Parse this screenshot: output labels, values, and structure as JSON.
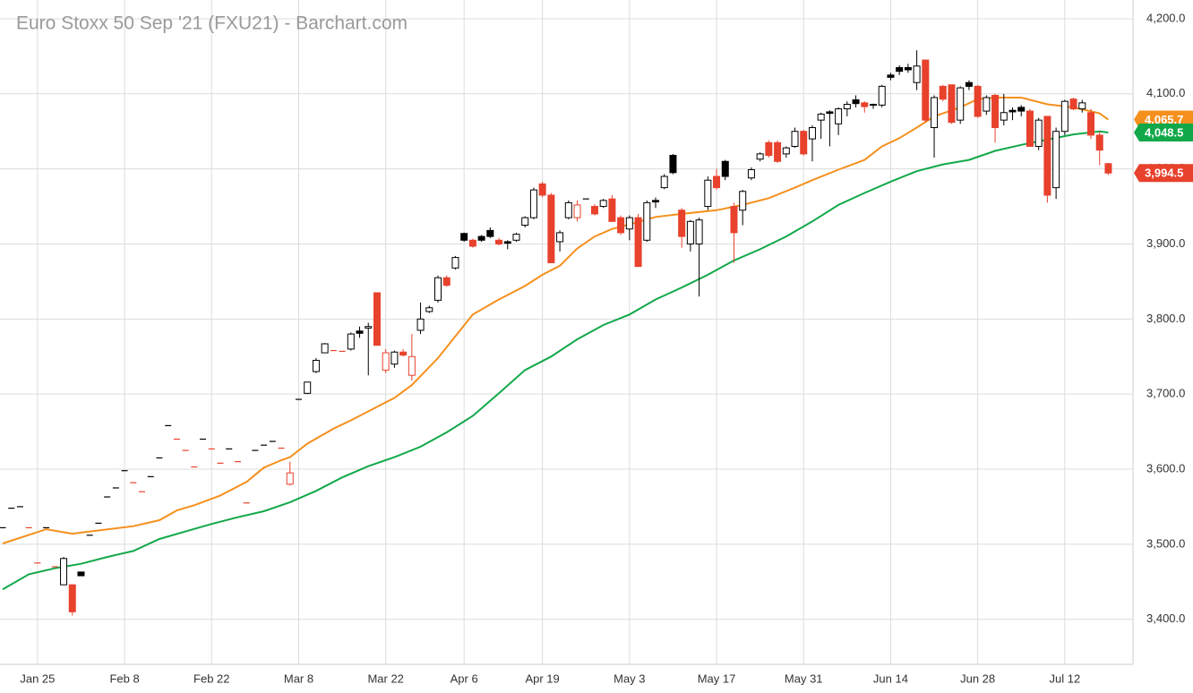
{
  "chart_data": {
    "type": "candlestick",
    "title": "Euro Stoxx 50 Sep '21 (FXU21) - Barchart.com",
    "categories": [
      null,
      null,
      null,
      null,
      "Jan 25",
      null,
      null,
      null,
      null,
      null,
      null,
      null,
      null,
      null,
      "Feb 8",
      null,
      null,
      null,
      null,
      null,
      null,
      null,
      null,
      null,
      "Feb 22",
      null,
      null,
      null,
      null,
      null,
      null,
      null,
      null,
      null,
      "Mar 8",
      null,
      null,
      null,
      null,
      null,
      null,
      null,
      null,
      null,
      "Mar 22",
      null,
      null,
      null,
      null,
      null,
      null,
      null,
      null,
      "Apr 6",
      null,
      null,
      null,
      null,
      null,
      null,
      null,
      null,
      "Apr 19",
      null,
      null,
      null,
      null,
      null,
      null,
      null,
      null,
      null,
      "May 3",
      null,
      null,
      null,
      null,
      null,
      null,
      null,
      null,
      null,
      "May 17",
      null,
      null,
      null,
      null,
      null,
      null,
      null,
      null,
      null,
      "May 31",
      null,
      null,
      null,
      null,
      null,
      null,
      null,
      null,
      null,
      "Jun 14",
      null,
      null,
      null,
      null,
      null,
      null,
      null,
      null,
      null,
      "Jun 28",
      null,
      null,
      null,
      null,
      null,
      null,
      null,
      null,
      null,
      "Jul 12",
      null,
      null,
      null,
      null,
      null
    ],
    "ohlc": [
      [
        3522,
        3522,
        3522,
        3522
      ],
      [
        3548,
        3548,
        3548,
        3548
      ],
      [
        3550,
        3550,
        3550,
        3550
      ],
      [
        3522,
        3522,
        3522,
        3522
      ],
      [
        3475,
        3475,
        3475,
        3475
      ],
      [
        3522,
        3522,
        3522,
        3522
      ],
      [
        3470,
        3470,
        3470,
        3470
      ],
      [
        3446,
        3483,
        3446,
        3481
      ],
      [
        3446,
        3446,
        3405,
        3410
      ],
      [
        3463,
        3463,
        3458,
        3458
      ],
      [
        3512,
        3512,
        3512,
        3512
      ],
      [
        3528,
        3528,
        3528,
        3528
      ],
      [
        3563,
        3563,
        3563,
        3563
      ],
      [
        3575,
        3575,
        3575,
        3575
      ],
      [
        3598,
        3598,
        3598,
        3598
      ],
      [
        3582,
        3582,
        3582,
        3582
      ],
      [
        3570,
        3570,
        3570,
        3570
      ],
      [
        3590,
        3590,
        3590,
        3590
      ],
      [
        3615,
        3615,
        3615,
        3615
      ],
      [
        3658,
        3658,
        3658,
        3658
      ],
      [
        3640,
        3640,
        3640,
        3640
      ],
      [
        3625,
        3625,
        3625,
        3625
      ],
      [
        3603,
        3603,
        3603,
        3603
      ],
      [
        3640,
        3640,
        3640,
        3640
      ],
      [
        3627,
        3627,
        3627,
        3627
      ],
      [
        3608,
        3608,
        3608,
        3608
      ],
      [
        3627,
        3627,
        3627,
        3627
      ],
      [
        3610,
        3610,
        3610,
        3610
      ],
      [
        3555,
        3555,
        3555,
        3555
      ],
      [
        3625,
        3625,
        3625,
        3625
      ],
      [
        3632,
        3632,
        3632,
        3632
      ],
      [
        3637,
        3637,
        3637,
        3637
      ],
      [
        3628,
        3628,
        3628,
        3628
      ],
      [
        3580,
        3610,
        3578,
        3595
      ],
      [
        3693,
        3693,
        3693,
        3693
      ],
      [
        3701,
        3716,
        3700,
        3716
      ],
      [
        3730,
        3748,
        3728,
        3745
      ],
      [
        3755,
        3768,
        3755,
        3767
      ],
      [
        3758,
        3758,
        3758,
        3758
      ],
      [
        3757,
        3757,
        3757,
        3757
      ],
      [
        3760,
        3782,
        3758,
        3780
      ],
      [
        3784,
        3790,
        3775,
        3781
      ],
      [
        3788,
        3795,
        3725,
        3790
      ],
      [
        3835,
        3835,
        3765,
        3765
      ],
      [
        3732,
        3760,
        3728,
        3755
      ],
      [
        3740,
        3758,
        3735,
        3756
      ],
      [
        3756,
        3760,
        3750,
        3752
      ],
      [
        3725,
        3780,
        3718,
        3750
      ],
      [
        3785,
        3822,
        3780,
        3800
      ],
      [
        3810,
        3818,
        3808,
        3815
      ],
      [
        3825,
        3858,
        3822,
        3855
      ],
      [
        3855,
        3858,
        3843,
        3845
      ],
      [
        3868,
        3884,
        3866,
        3882
      ],
      [
        3914,
        3915,
        3903,
        3905
      ],
      [
        3905,
        3907,
        3895,
        3897
      ],
      [
        3910,
        3912,
        3903,
        3905
      ],
      [
        3918,
        3922,
        3908,
        3910
      ],
      [
        3905,
        3908,
        3898,
        3900
      ],
      [
        3903,
        3905,
        3893,
        3901
      ],
      [
        3905,
        3915,
        3903,
        3913
      ],
      [
        3925,
        3937,
        3922,
        3935
      ],
      [
        3935,
        3975,
        3933,
        3972
      ],
      [
        3980,
        3983,
        3962,
        3965
      ],
      [
        3965,
        3968,
        3875,
        3875
      ],
      [
        3903,
        3918,
        3890,
        3915
      ],
      [
        3935,
        3958,
        3933,
        3955
      ],
      [
        3935,
        3958,
        3930,
        3952
      ],
      [
        3960,
        3960,
        3960,
        3960
      ],
      [
        3950,
        3953,
        3938,
        3940
      ],
      [
        3950,
        3960,
        3948,
        3958
      ],
      [
        3960,
        3965,
        3930,
        3930
      ],
      [
        3935,
        3938,
        3912,
        3915
      ],
      [
        3920,
        3938,
        3905,
        3935
      ],
      [
        3935,
        3940,
        3870,
        3870
      ],
      [
        3905,
        3958,
        3903,
        3955
      ],
      [
        3958,
        3962,
        3948,
        3956
      ],
      [
        3975,
        3993,
        3973,
        3990
      ],
      [
        4018,
        4020,
        3993,
        3995
      ],
      [
        3945,
        3948,
        3895,
        3910
      ],
      [
        3900,
        3932,
        3890,
        3930
      ],
      [
        3900,
        3935,
        3830,
        3932
      ],
      [
        3950,
        3990,
        3945,
        3985
      ],
      [
        3990,
        4000,
        3972,
        3975
      ],
      [
        4010,
        4012,
        3985,
        3990
      ],
      [
        3950,
        3955,
        3875,
        3915
      ],
      [
        3945,
        3972,
        3925,
        3970
      ],
      [
        3988,
        4002,
        3985,
        3999
      ],
      [
        4013,
        4022,
        4010,
        4020
      ],
      [
        4035,
        4038,
        4015,
        4018
      ],
      [
        4035,
        4038,
        4008,
        4010
      ],
      [
        4020,
        4030,
        4015,
        4028
      ],
      [
        4030,
        4055,
        4028,
        4050
      ],
      [
        4050,
        4052,
        4018,
        4020
      ],
      [
        4040,
        4058,
        4010,
        4055
      ],
      [
        4065,
        4075,
        4040,
        4073
      ],
      [
        4076,
        4078,
        4030,
        4074
      ],
      [
        4060,
        4082,
        4045,
        4080
      ],
      [
        4080,
        4090,
        4070,
        4086
      ],
      [
        4092,
        4098,
        4082,
        4087
      ],
      [
        4088,
        4090,
        4075,
        4083
      ],
      [
        4085,
        4087,
        4080,
        4086
      ],
      [
        4085,
        4112,
        4082,
        4110
      ],
      [
        4125,
        4128,
        4118,
        4122
      ],
      [
        4135,
        4138,
        4125,
        4130
      ],
      [
        4135,
        4140,
        4128,
        4132
      ],
      [
        4115,
        4158,
        4105,
        4137
      ],
      [
        4145,
        4145,
        4062,
        4065
      ],
      [
        4055,
        4098,
        4015,
        4095
      ],
      [
        4110,
        4112,
        4090,
        4093
      ],
      [
        4112,
        4112,
        4060,
        4062
      ],
      [
        4065,
        4110,
        4060,
        4108
      ],
      [
        4115,
        4118,
        4105,
        4110
      ],
      [
        4110,
        4112,
        4068,
        4070
      ],
      [
        4077,
        4098,
        4072,
        4095
      ],
      [
        4098,
        4100,
        4035,
        4055
      ],
      [
        4065,
        4100,
        4058,
        4075
      ],
      [
        4078,
        4082,
        4065,
        4076
      ],
      [
        4082,
        4085,
        4070,
        4077
      ],
      [
        4077,
        4080,
        4030,
        4030
      ],
      [
        4030,
        4068,
        4025,
        4065
      ],
      [
        4070,
        4070,
        3955,
        3965
      ],
      [
        3975,
        4055,
        3960,
        4050
      ],
      [
        4050,
        4092,
        4045,
        4090
      ],
      [
        4093,
        4095,
        4078,
        4080
      ],
      [
        4080,
        4092,
        4075,
        4088
      ],
      [
        4075,
        4080,
        4040,
        4045
      ],
      [
        4045,
        4050,
        4005,
        4025
      ],
      [
        4007,
        4008,
        3992,
        3994.5
      ]
    ],
    "up_color": "#000000",
    "down_color": "#e8412c",
    "last_price": {
      "value": 3994.5,
      "label": "3,994.5"
    },
    "series": [
      {
        "color": "#f5901e",
        "x": [
          0,
          5,
          8,
          10,
          15,
          18,
          20,
          22,
          25,
          28,
          30,
          32,
          33,
          35,
          38,
          40,
          43,
          45,
          47,
          50,
          52,
          54,
          57,
          60,
          62,
          64,
          66,
          68,
          70,
          72,
          75,
          78,
          82,
          85,
          88,
          91,
          93,
          96,
          99,
          101,
          103,
          105,
          107,
          110,
          112,
          114,
          117,
          120,
          123,
          126,
          127
        ],
        "values": [
          3501,
          3520,
          3514,
          3517,
          3524,
          3532,
          3545,
          3552,
          3565,
          3583,
          3602,
          3612,
          3616,
          3634,
          3654,
          3665,
          3683,
          3695,
          3712,
          3748,
          3777,
          3806,
          3826,
          3844,
          3859,
          3871,
          3894,
          3910,
          3920,
          3926,
          3936,
          3940,
          3945,
          3952,
          3961,
          3975,
          3985,
          3999,
          4012,
          4030,
          4041,
          4055,
          4070,
          4082,
          4093,
          4095,
          4095,
          4086,
          4082,
          4074,
          4065.7
        ],
        "last": {
          "value": 4065.7,
          "label": "4,065.7"
        }
      },
      {
        "color": "#12a84a",
        "x": [
          0,
          3,
          6,
          9,
          12,
          15,
          18,
          21,
          24,
          27,
          30,
          33,
          36,
          39,
          42,
          45,
          48,
          51,
          54,
          57,
          60,
          63,
          66,
          69,
          72,
          75,
          78,
          81,
          84,
          87,
          90,
          93,
          96,
          99,
          102,
          105,
          108,
          111,
          114,
          117,
          120,
          123,
          126,
          127
        ],
        "values": [
          3440,
          3460,
          3468,
          3474,
          3483,
          3491,
          3507,
          3517,
          3527,
          3536,
          3544,
          3556,
          3571,
          3589,
          3604,
          3616,
          3630,
          3649,
          3671,
          3701,
          3732,
          3750,
          3773,
          3792,
          3806,
          3826,
          3842,
          3859,
          3878,
          3893,
          3910,
          3930,
          3952,
          3968,
          3983,
          3997,
          4006,
          4012,
          4024,
          4032,
          4039,
          4046,
          4050,
          4048.5
        ],
        "last": {
          "value": 4048.5,
          "label": "4,048.5"
        }
      }
    ],
    "ylim": [
      3340,
      4225
    ],
    "yticks": [
      {
        "value": 3400,
        "label": "3,400.0"
      },
      {
        "value": 3500,
        "label": "3,500.0"
      },
      {
        "value": 3600,
        "label": "3,600.0"
      },
      {
        "value": 3700,
        "label": "3,700.0"
      },
      {
        "value": 3800,
        "label": "3,800.0"
      },
      {
        "value": 3900,
        "label": "3,900.0"
      },
      {
        "value": 4000,
        "label": "4,000.0"
      },
      {
        "value": 4100,
        "label": "4,100.0"
      },
      {
        "value": 4200,
        "label": "4,200.0"
      }
    ],
    "grid": true
  }
}
